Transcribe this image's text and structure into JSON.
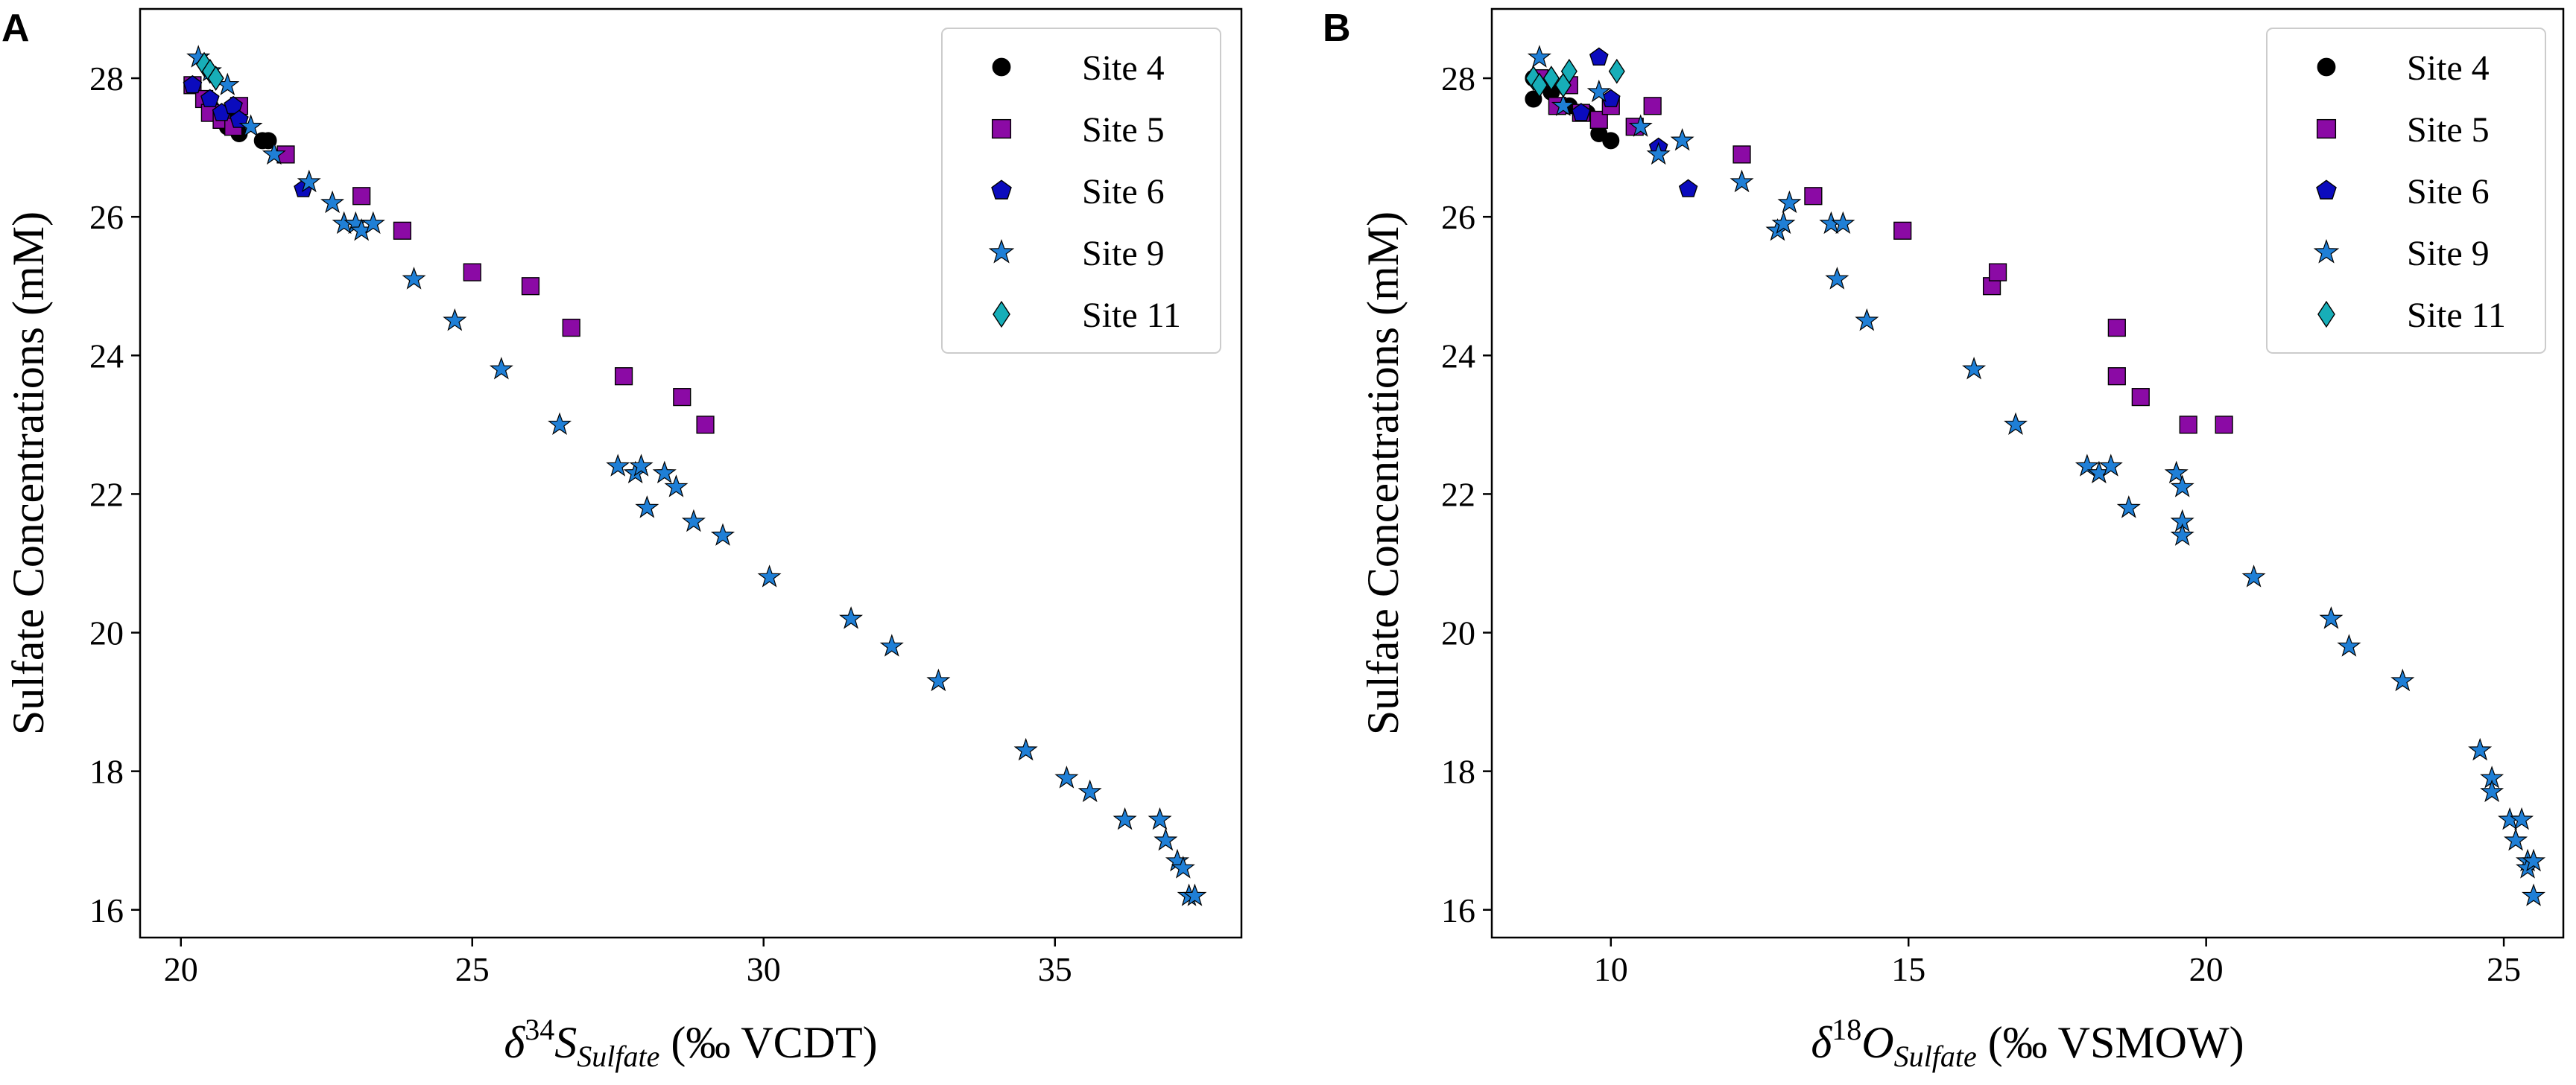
{
  "legend": {
    "markers": {
      "Site 4": {
        "shape": "circle",
        "fill": "#000000"
      },
      "Site 5": {
        "shape": "square",
        "fill": "#8b0aa5"
      },
      "Site 6": {
        "shape": "pentagon",
        "fill": "#0b0bbd"
      },
      "Site 9": {
        "shape": "star",
        "fill": "#1f7fd6"
      },
      "Site 11": {
        "shape": "diamond",
        "fill": "#17aeb8"
      }
    },
    "placement": "top-right"
  },
  "chart_data": [
    {
      "type": "scatter",
      "panel": "A",
      "xlabel_symbol": "δ",
      "xlabel_sup": "34",
      "xlabel_var": "S",
      "xlabel_sub": "Sulfate",
      "xlabel_unit": " (‰ VCDT)",
      "ylabel": "Sulfate Concentrations (mM)",
      "xlim": [
        19.3,
        38.2
      ],
      "ylim": [
        15.6,
        29.0
      ],
      "xticks": [
        20,
        25,
        30,
        35
      ],
      "yticks": [
        16,
        18,
        20,
        22,
        24,
        26,
        28
      ],
      "series": [
        {
          "name": "Site 4",
          "x": [
            20.4,
            20.5,
            20.6,
            20.8,
            21.0,
            21.4,
            21.5,
            20.9
          ],
          "y": [
            27.7,
            27.6,
            27.5,
            27.3,
            27.2,
            27.1,
            27.1,
            27.5
          ]
        },
        {
          "name": "Site 5",
          "x": [
            20.2,
            20.4,
            20.5,
            20.7,
            20.9,
            21.0,
            21.8,
            23.1,
            23.8,
            25.0,
            26.0,
            26.7,
            27.6,
            28.6,
            29.0
          ],
          "y": [
            27.9,
            27.7,
            27.5,
            27.4,
            27.3,
            27.6,
            26.9,
            26.3,
            25.8,
            25.2,
            25.0,
            24.4,
            23.7,
            23.4,
            23.0
          ]
        },
        {
          "name": "Site 6",
          "x": [
            20.2,
            20.5,
            20.7,
            20.9,
            21.0,
            22.1
          ],
          "y": [
            27.9,
            27.7,
            27.5,
            27.6,
            27.4,
            26.4
          ]
        },
        {
          "name": "Site 9",
          "x": [
            20.3,
            20.5,
            20.8,
            21.2,
            21.6,
            22.2,
            22.6,
            22.8,
            23.0,
            23.1,
            23.3,
            24.0,
            24.7,
            25.5,
            26.5,
            27.5,
            27.8,
            27.9,
            28.0,
            28.3,
            28.5,
            28.8,
            29.3,
            30.1,
            31.5,
            32.2,
            33.0,
            34.5,
            35.2,
            35.6,
            36.2,
            36.8,
            36.9,
            37.1,
            37.2,
            37.3,
            37.4
          ],
          "y": [
            28.3,
            28.1,
            27.9,
            27.3,
            26.9,
            26.5,
            26.2,
            25.9,
            25.9,
            25.8,
            25.9,
            25.1,
            24.5,
            23.8,
            23.0,
            22.4,
            22.3,
            22.4,
            21.8,
            22.3,
            22.1,
            21.6,
            21.4,
            20.8,
            20.2,
            19.8,
            19.3,
            18.3,
            17.9,
            17.7,
            17.3,
            17.3,
            17.0,
            16.7,
            16.6,
            16.2,
            16.2
          ]
        },
        {
          "name": "Site 11",
          "x": [
            20.4,
            20.5,
            20.6
          ],
          "y": [
            28.2,
            28.1,
            28.0
          ]
        }
      ]
    },
    {
      "type": "scatter",
      "panel": "B",
      "xlabel_symbol": "δ",
      "xlabel_sup": "18",
      "xlabel_var": "O",
      "xlabel_sub": "Sulfate",
      "xlabel_unit": " (‰ VSMOW)",
      "ylabel": "Sulfate Concentrations (mM)",
      "xlim": [
        8.0,
        26.0
      ],
      "ylim": [
        15.6,
        29.0
      ],
      "xticks": [
        10,
        15,
        20,
        25
      ],
      "yticks": [
        16,
        18,
        20,
        22,
        24,
        26,
        28
      ],
      "series": [
        {
          "name": "Site 4",
          "x": [
            8.7,
            8.7,
            9.0,
            9.3,
            9.8,
            10.0,
            9.6
          ],
          "y": [
            28.0,
            27.7,
            27.8,
            27.6,
            27.2,
            27.1,
            27.5
          ]
        },
        {
          "name": "Site 5",
          "x": [
            8.8,
            9.1,
            9.3,
            9.5,
            9.8,
            10.0,
            10.4,
            10.7,
            12.2,
            13.4,
            14.9,
            16.4,
            16.5,
            18.5,
            18.5,
            18.9,
            19.7,
            20.3
          ],
          "y": [
            28.0,
            27.6,
            27.9,
            27.5,
            27.4,
            27.6,
            27.3,
            27.6,
            26.9,
            26.3,
            25.8,
            25.0,
            25.2,
            24.4,
            23.7,
            23.4,
            23.0,
            23.0
          ]
        },
        {
          "name": "Site 6",
          "x": [
            9.5,
            9.8,
            10.0,
            10.8,
            11.3
          ],
          "y": [
            27.5,
            28.3,
            27.7,
            27.0,
            26.4
          ]
        },
        {
          "name": "Site 9",
          "x": [
            8.8,
            9.2,
            9.8,
            10.5,
            10.8,
            11.2,
            12.2,
            12.8,
            12.9,
            13.0,
            13.7,
            13.9,
            13.8,
            14.3,
            16.1,
            16.8,
            18.0,
            18.2,
            18.4,
            18.7,
            19.5,
            19.6,
            19.6,
            19.6,
            20.8,
            22.1,
            22.4,
            23.3,
            24.6,
            24.8,
            24.8,
            25.1,
            25.2,
            25.3,
            25.4,
            25.4,
            25.5,
            25.5
          ],
          "y": [
            28.3,
            27.6,
            27.8,
            27.3,
            26.9,
            27.1,
            26.5,
            25.8,
            25.9,
            26.2,
            25.9,
            25.9,
            25.1,
            24.5,
            23.8,
            23.0,
            22.4,
            22.3,
            22.4,
            21.8,
            22.3,
            22.1,
            21.6,
            21.4,
            20.8,
            20.2,
            19.8,
            19.3,
            18.3,
            17.9,
            17.7,
            17.3,
            17.0,
            17.3,
            16.7,
            16.6,
            16.7,
            16.2
          ]
        },
        {
          "name": "Site 11",
          "x": [
            8.7,
            9.0,
            9.2,
            9.3,
            10.1,
            8.8
          ],
          "y": [
            28.0,
            28.0,
            27.9,
            28.1,
            28.1,
            27.9
          ]
        }
      ]
    }
  ]
}
